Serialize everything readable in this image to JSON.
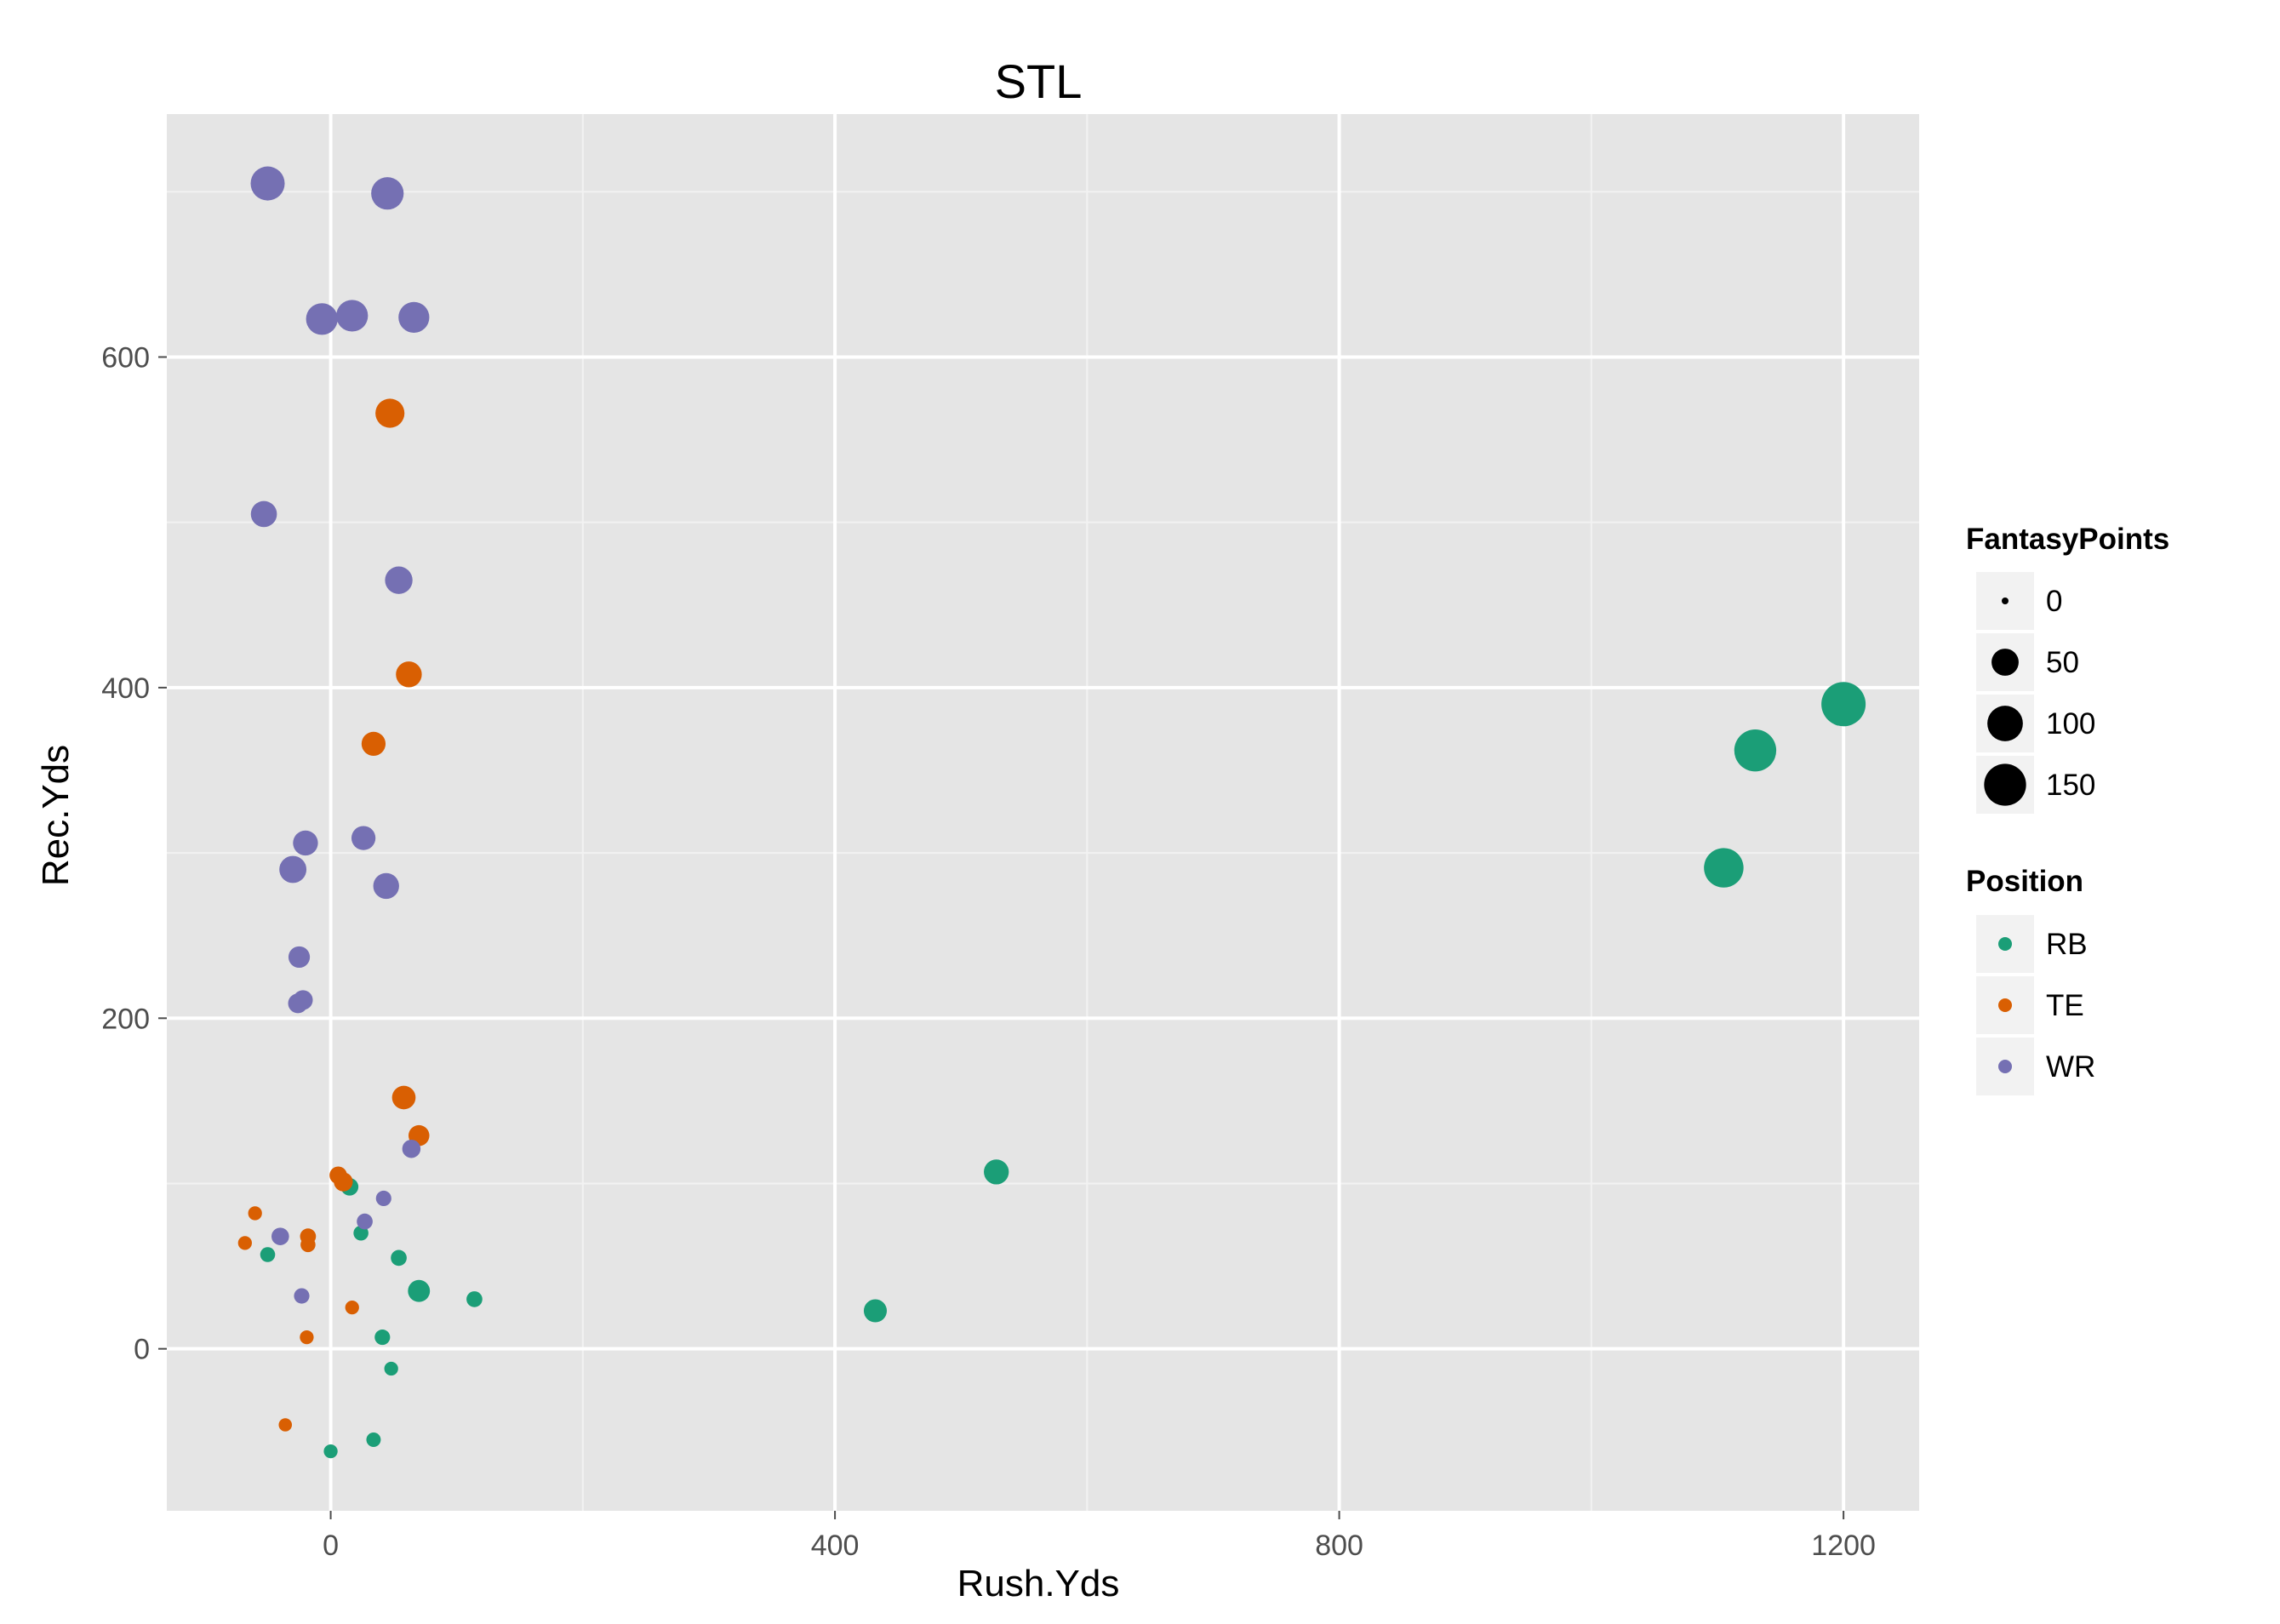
{
  "chart_data": {
    "type": "scatter",
    "title": "STL",
    "xlabel": "Rush.Yds",
    "ylabel": "Rec.Yds",
    "xlim": [
      -130,
      1260
    ],
    "ylim": [
      -98,
      747
    ],
    "xticks": [
      0,
      400,
      800,
      1200
    ],
    "xtick_labels": [
      "0",
      "400",
      "800",
      "1200"
    ],
    "yticks": [
      0,
      200,
      400,
      600
    ],
    "ytick_labels": [
      "0",
      "200",
      "400",
      "600"
    ],
    "grid": true,
    "legend_position": "right",
    "size_legend": {
      "title": "FantasyPoints",
      "values": [
        0,
        50,
        100,
        150
      ],
      "labels": [
        "0",
        "50",
        "100",
        "150"
      ]
    },
    "color_legend": {
      "title": "Position",
      "entries": [
        {
          "label": "RB",
          "color": "#1b9e77"
        },
        {
          "label": "TE",
          "color": "#d95f02"
        },
        {
          "label": "WR",
          "color": "#7570b3"
        }
      ]
    },
    "series": [
      {
        "name": "RB",
        "color": "#1b9e77",
        "points": [
          {
            "x": 1200,
            "y": 390,
            "size": 170
          },
          {
            "x": 1130,
            "y": 362,
            "size": 150
          },
          {
            "x": 1105,
            "y": 291,
            "size": 130
          },
          {
            "x": 528,
            "y": 107,
            "size": 40
          },
          {
            "x": 432,
            "y": 23,
            "size": 32
          },
          {
            "x": 70,
            "y": 35,
            "size": 28
          },
          {
            "x": 114,
            "y": 30,
            "size": 10
          },
          {
            "x": 54,
            "y": 55,
            "size": 10
          },
          {
            "x": 24,
            "y": 70,
            "size": 8
          },
          {
            "x": 15,
            "y": 98,
            "size": 14
          },
          {
            "x": -50,
            "y": 57,
            "size": 8
          },
          {
            "x": 41,
            "y": 7,
            "size": 9
          },
          {
            "x": 48,
            "y": -12,
            "size": 6
          },
          {
            "x": 34,
            "y": -55,
            "size": 7
          },
          {
            "x": 0,
            "y": -62,
            "size": 6
          }
        ]
      },
      {
        "name": "TE",
        "color": "#d95f02",
        "points": [
          {
            "x": 47,
            "y": 566,
            "size": 60
          },
          {
            "x": 62,
            "y": 408,
            "size": 44
          },
          {
            "x": 34,
            "y": 366,
            "size": 36
          },
          {
            "x": 58,
            "y": 152,
            "size": 34
          },
          {
            "x": 70,
            "y": 129,
            "size": 24
          },
          {
            "x": 6,
            "y": 105,
            "size": 14
          },
          {
            "x": 10,
            "y": 101,
            "size": 18
          },
          {
            "x": -60,
            "y": 82,
            "size": 6
          },
          {
            "x": -18,
            "y": 68,
            "size": 10
          },
          {
            "x": -18,
            "y": 63,
            "size": 8
          },
          {
            "x": -68,
            "y": 64,
            "size": 6
          },
          {
            "x": 17,
            "y": 25,
            "size": 6
          },
          {
            "x": -19,
            "y": 7,
            "size": 6
          },
          {
            "x": -36,
            "y": -46,
            "size": 5
          }
        ]
      },
      {
        "name": "WR",
        "color": "#7570b3",
        "points": [
          {
            "x": -50,
            "y": 705,
            "size": 90
          },
          {
            "x": 45,
            "y": 699,
            "size": 80
          },
          {
            "x": -7,
            "y": 623,
            "size": 75
          },
          {
            "x": 17,
            "y": 625,
            "size": 75
          },
          {
            "x": 66,
            "y": 624,
            "size": 70
          },
          {
            "x": -53,
            "y": 505,
            "size": 45
          },
          {
            "x": 54,
            "y": 465,
            "size": 52
          },
          {
            "x": -20,
            "y": 306,
            "size": 40
          },
          {
            "x": 26,
            "y": 309,
            "size": 36
          },
          {
            "x": -30,
            "y": 290,
            "size": 50
          },
          {
            "x": 44,
            "y": 280,
            "size": 44
          },
          {
            "x": -25,
            "y": 237,
            "size": 26
          },
          {
            "x": -26,
            "y": 209,
            "size": 20
          },
          {
            "x": -22,
            "y": 211,
            "size": 20
          },
          {
            "x": 64,
            "y": 121,
            "size": 16
          },
          {
            "x": 42,
            "y": 91,
            "size": 9
          },
          {
            "x": 27,
            "y": 77,
            "size": 10
          },
          {
            "x": -40,
            "y": 68,
            "size": 14
          },
          {
            "x": -23,
            "y": 32,
            "size": 9
          }
        ]
      }
    ]
  }
}
